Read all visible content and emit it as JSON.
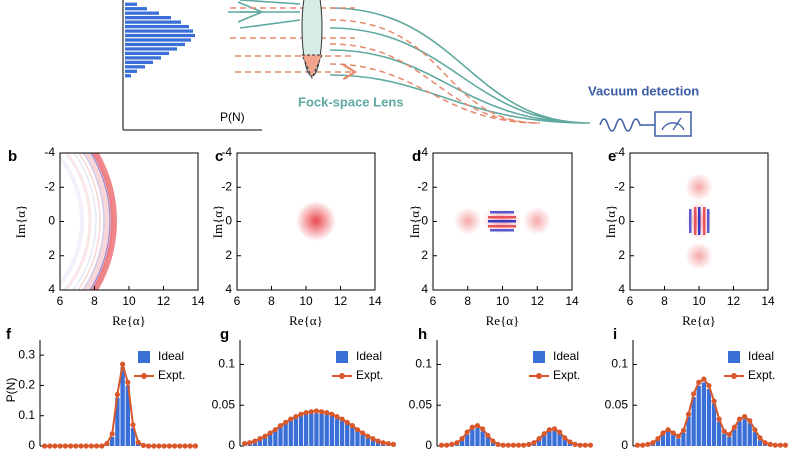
{
  "chart_data": [
    {
      "type": "hbar",
      "xlabel": "P(N)",
      "color": "#3a6fd8",
      "values": [
        12,
        22,
        34,
        46,
        56,
        64,
        68,
        70,
        66,
        60,
        52,
        44,
        36,
        28,
        20,
        12,
        6
      ]
    },
    {
      "type": "heatmap",
      "panel_label": "b",
      "xlabel": "Re{α}",
      "ylabel": "Im{α}",
      "xlim": [
        6,
        14
      ],
      "xticks": [
        6,
        8,
        10,
        12,
        14
      ],
      "ylim": [
        4,
        -4
      ],
      "yticks": [
        -4,
        -2,
        0,
        2,
        4
      ]
    },
    {
      "type": "heatmap",
      "panel_label": "c",
      "xlabel": "Re{α}",
      "ylabel": "Im{α}",
      "xlim": [
        6,
        14
      ],
      "xticks": [
        6,
        8,
        10,
        12,
        14
      ],
      "ylim": [
        4,
        -4
      ],
      "yticks": [
        -4,
        -2,
        0,
        2,
        4
      ]
    },
    {
      "type": "heatmap",
      "panel_label": "d",
      "xlabel": "Re{α}",
      "ylabel": "Im{α}",
      "xlim": [
        6,
        14
      ],
      "xticks": [
        6,
        8,
        10,
        12,
        14
      ],
      "ylim": [
        4,
        -4
      ],
      "yticks": [
        -4,
        -2,
        0,
        2,
        4
      ]
    },
    {
      "type": "heatmap",
      "panel_label": "e",
      "xlabel": "Re{α}",
      "ylabel": "Im{α}",
      "xlim": [
        6,
        14
      ],
      "xticks": [
        6,
        8,
        10,
        12,
        14
      ],
      "ylim": [
        4,
        -4
      ],
      "yticks": [
        -4,
        -2,
        0,
        2,
        4
      ]
    },
    {
      "type": "bar",
      "panel_label": "f",
      "ylabel": "P(N)",
      "ylim": [
        0,
        0.35
      ],
      "yticks": [
        0,
        0.1,
        0.2,
        0.3
      ],
      "series": [
        {
          "name": "Ideal",
          "color": "#3a6fd8",
          "kind": "bar",
          "values": [
            0,
            0,
            0,
            0,
            0,
            0,
            0,
            0,
            0,
            0,
            0,
            0,
            0.005,
            0.03,
            0.16,
            0.26,
            0.2,
            0.06,
            0.008,
            0,
            0,
            0,
            0,
            0,
            0,
            0,
            0,
            0,
            0,
            0
          ]
        },
        {
          "name": "Expt.",
          "color": "#d9582b",
          "kind": "line",
          "values": [
            0,
            0,
            0,
            0,
            0,
            0,
            0,
            0,
            0,
            0,
            0,
            0,
            0.008,
            0.04,
            0.17,
            0.27,
            0.21,
            0.07,
            0.012,
            0.002,
            0,
            0,
            0,
            0,
            0,
            0,
            0,
            0,
            0,
            0
          ]
        }
      ]
    },
    {
      "type": "bar",
      "panel_label": "g",
      "ylim": [
        0,
        0.13
      ],
      "yticks": [
        0,
        0.05,
        0.1
      ],
      "series": [
        {
          "name": "Ideal",
          "color": "#3a6fd8",
          "kind": "bar",
          "values": [
            0.002,
            0.003,
            0.005,
            0.007,
            0.01,
            0.014,
            0.018,
            0.023,
            0.027,
            0.031,
            0.034,
            0.037,
            0.039,
            0.04,
            0.04,
            0.04,
            0.039,
            0.037,
            0.034,
            0.031,
            0.027,
            0.023,
            0.018,
            0.014,
            0.01,
            0.007,
            0.005,
            0.003,
            0.002,
            0.001
          ]
        },
        {
          "name": "Expt.",
          "color": "#d9582b",
          "kind": "line",
          "values": [
            0.003,
            0.004,
            0.006,
            0.009,
            0.012,
            0.016,
            0.02,
            0.025,
            0.029,
            0.033,
            0.036,
            0.039,
            0.041,
            0.042,
            0.043,
            0.042,
            0.041,
            0.039,
            0.036,
            0.033,
            0.029,
            0.025,
            0.02,
            0.016,
            0.012,
            0.009,
            0.006,
            0.004,
            0.003,
            0.002
          ]
        }
      ]
    },
    {
      "type": "bar",
      "panel_label": "h",
      "ylim": [
        0,
        0.13
      ],
      "yticks": [
        0,
        0.05,
        0.1
      ],
      "series": [
        {
          "name": "Ideal",
          "color": "#3a6fd8",
          "kind": "bar",
          "values": [
            0,
            0,
            0,
            0.002,
            0.007,
            0.014,
            0.02,
            0.022,
            0.018,
            0.011,
            0.004,
            0.001,
            0,
            0,
            0,
            0,
            0,
            0,
            0.002,
            0.007,
            0.013,
            0.018,
            0.019,
            0.015,
            0.008,
            0.003,
            0.001,
            0,
            0,
            0
          ]
        },
        {
          "name": "Expt.",
          "color": "#d9582b",
          "kind": "line",
          "values": [
            0.001,
            0.001,
            0.002,
            0.004,
            0.009,
            0.017,
            0.023,
            0.025,
            0.021,
            0.013,
            0.006,
            0.002,
            0.001,
            0.001,
            0.001,
            0.001,
            0.001,
            0.002,
            0.004,
            0.009,
            0.015,
            0.02,
            0.021,
            0.017,
            0.01,
            0.005,
            0.002,
            0.001,
            0.001,
            0.001
          ]
        }
      ]
    },
    {
      "type": "bar",
      "panel_label": "i",
      "ylim": [
        0,
        0.13
      ],
      "yticks": [
        0,
        0.05,
        0.1
      ],
      "series": [
        {
          "name": "Ideal",
          "color": "#3a6fd8",
          "kind": "bar",
          "values": [
            0,
            0,
            0,
            0.002,
            0.007,
            0.014,
            0.018,
            0.014,
            0.009,
            0.016,
            0.036,
            0.06,
            0.074,
            0.078,
            0.07,
            0.052,
            0.03,
            0.015,
            0.011,
            0.02,
            0.03,
            0.033,
            0.028,
            0.017,
            0.007,
            0.002,
            0.001,
            0,
            0,
            0
          ]
        },
        {
          "name": "Expt.",
          "color": "#d9582b",
          "kind": "line",
          "values": [
            0.001,
            0.001,
            0.002,
            0.004,
            0.009,
            0.016,
            0.02,
            0.016,
            0.012,
            0.019,
            0.039,
            0.064,
            0.078,
            0.082,
            0.074,
            0.055,
            0.033,
            0.018,
            0.014,
            0.023,
            0.033,
            0.036,
            0.031,
            0.02,
            0.01,
            0.004,
            0.002,
            0.001,
            0.001,
            0.001
          ]
        }
      ]
    }
  ],
  "diagram": {
    "lens_label": "Fock-space Lens",
    "detection_label": "Vacuum detection"
  }
}
